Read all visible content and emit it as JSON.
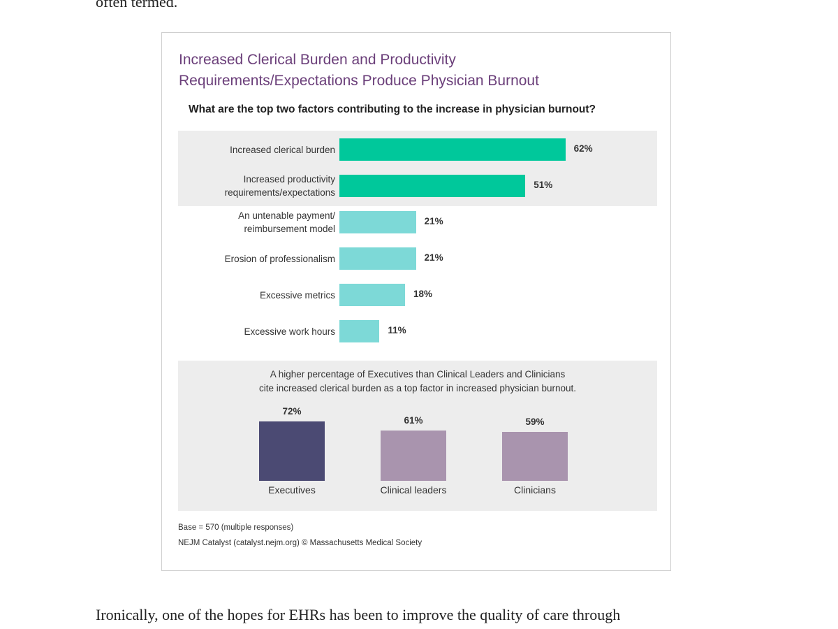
{
  "prose": {
    "top_line": "often termed.",
    "bottom_line": "Ironically, one of the hopes for EHRs has been to improve the quality of care through"
  },
  "colors": {
    "title": "#6b3f7a",
    "highlight_bar": "#00c89b",
    "standard_bar": "#7dd9d7",
    "executives_bar": "#4b4a73",
    "other_roles_bar": "#a994ae",
    "panel_background": "#ededed"
  },
  "chart_data": [
    {
      "type": "bar",
      "orientation": "horizontal",
      "title": "Increased Clerical Burden and Productivity Requirements/Expectations Produce Physician Burnout",
      "subtitle": "What are the top two factors contributing to the increase in physician burnout?",
      "categories": [
        [
          "Increased clerical burden"
        ],
        [
          "Increased productivity",
          "requirements/expectations"
        ],
        [
          "An untenable payment/",
          "reimbursement model"
        ],
        [
          "Erosion of professionalism"
        ],
        [
          "Excessive metrics"
        ],
        [
          "Excessive work hours"
        ]
      ],
      "values": [
        62,
        51,
        21,
        21,
        18,
        11
      ],
      "value_labels": [
        "62%",
        "51%",
        "21%",
        "21%",
        "18%",
        "11%"
      ],
      "highlighted": [
        true,
        true,
        false,
        false,
        false,
        false
      ],
      "xlim": [
        0,
        100
      ],
      "grid": false
    },
    {
      "type": "bar",
      "orientation": "vertical",
      "note": [
        "A higher percentage of Executives than Clinical Leaders and Clinicians",
        "cite increased clerical burden as a top factor in increased physician burnout."
      ],
      "categories": [
        "Executives",
        "Clinical leaders",
        "Clinicians"
      ],
      "values": [
        72,
        61,
        59
      ],
      "value_labels": [
        "72%",
        "61%",
        "59%"
      ],
      "ylim": [
        0,
        100
      ],
      "grid": false
    }
  ],
  "footnotes": {
    "base": "Base = 570 (multiple responses)",
    "source": "NEJM Catalyst (catalyst.nejm.org) © Massachusetts Medical Society"
  }
}
